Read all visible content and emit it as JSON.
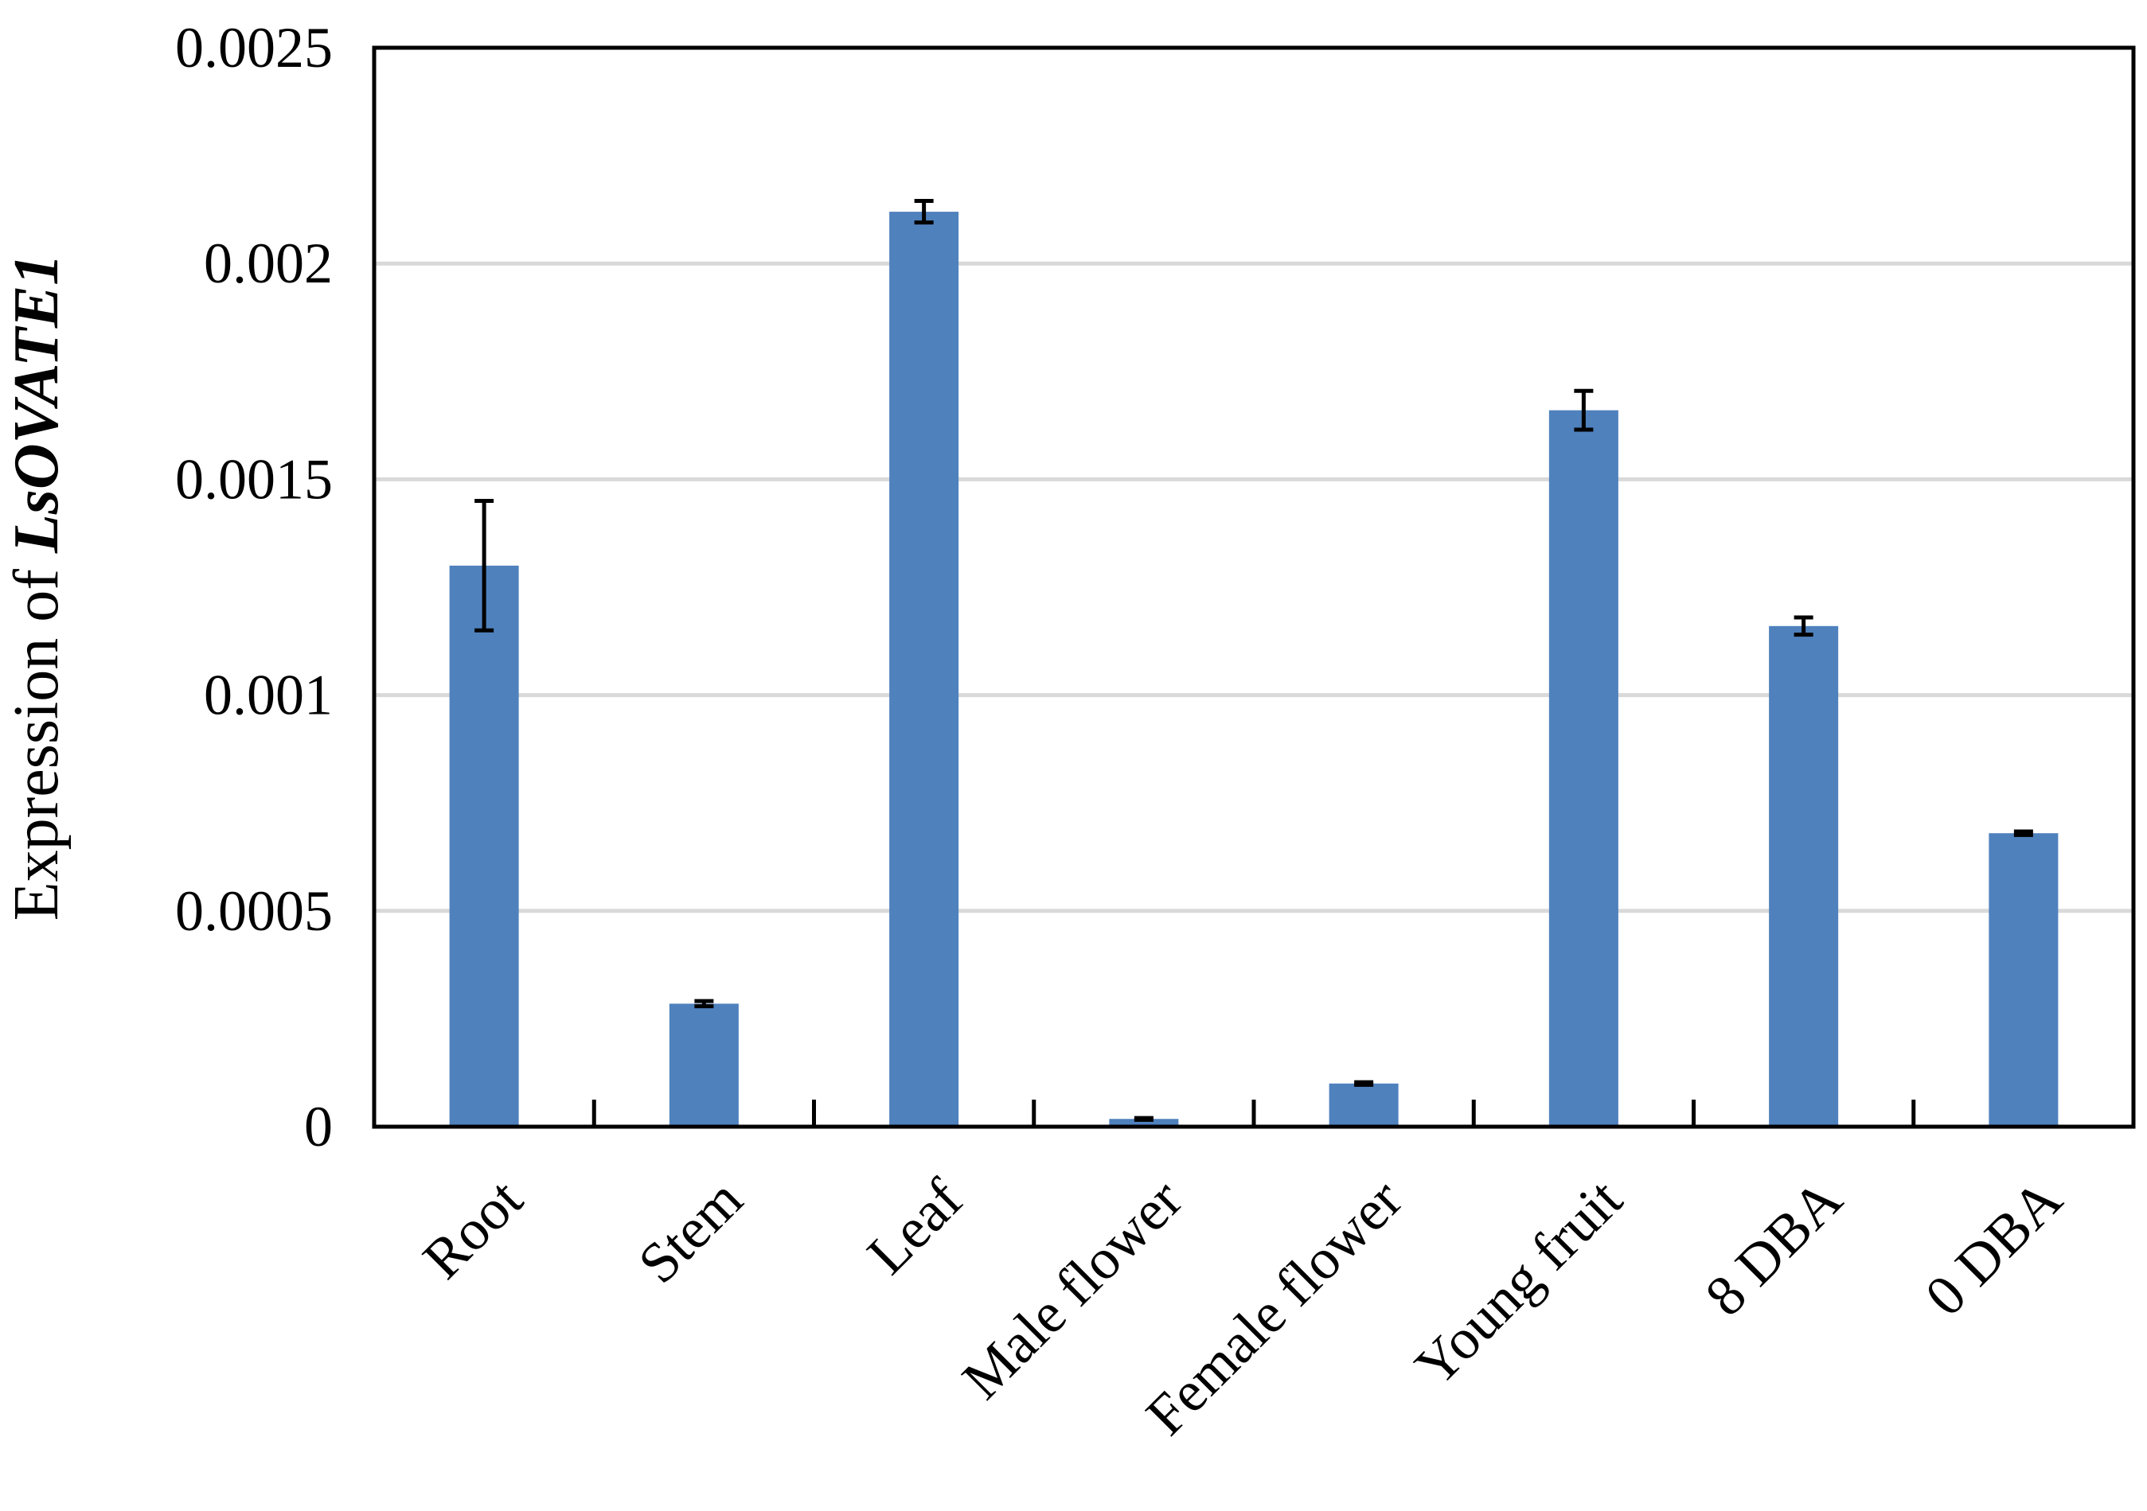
{
  "chart_data": {
    "type": "bar",
    "ylabel_prefix": "Expression of ",
    "ylabel_gene": "LsOVATE1",
    "xlabel": "",
    "categories": [
      "Root",
      "Stem",
      "Leaf",
      "Male flower",
      "Female flower",
      "Young fruit",
      "8 DBA",
      "0 DBA"
    ],
    "values": [
      0.0013,
      0.000285,
      0.00212,
      1.8e-05,
      0.0001,
      0.00166,
      0.00116,
      0.00068
    ],
    "errors": [
      0.00015,
      6e-06,
      2.5e-05,
      2e-06,
      3e-06,
      4.5e-05,
      2e-05,
      4e-06
    ],
    "ylim": [
      0,
      0.0025
    ],
    "yticks": [
      0,
      0.0005,
      0.001,
      0.0015,
      0.002,
      0.0025
    ],
    "ytick_labels": [
      "0",
      "0.0005",
      "0.001",
      "0.0015",
      "0.002",
      "0.0025"
    ],
    "grid": true,
    "legend": "none",
    "colors": {
      "bar": "#4f81bd",
      "grid": "#d9d9d9",
      "axis": "#000000",
      "error_bar": "#000000"
    }
  }
}
